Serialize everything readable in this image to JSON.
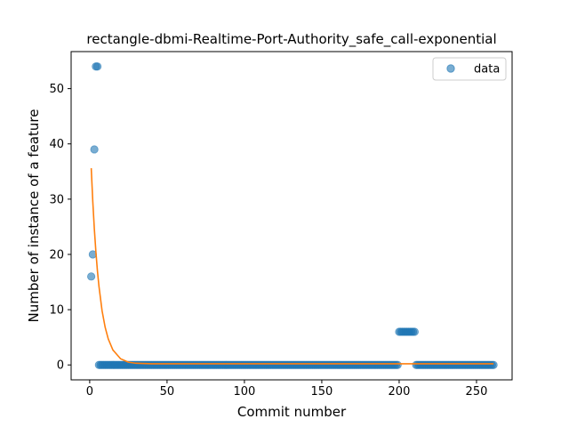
{
  "chart_data": {
    "type": "scatter",
    "title": "rectangle-dbmi-Realtime-Port-Authority_safe_call-exponential",
    "xlabel": "Commit number",
    "ylabel": "Number of instance of a feature",
    "xlim": [
      -12,
      273
    ],
    "ylim": [
      -2.7,
      56.7
    ],
    "xticks": [
      0,
      50,
      100,
      150,
      200,
      250
    ],
    "yticks": [
      0,
      10,
      20,
      30,
      40,
      50
    ],
    "grid": false,
    "legend_position": "top-right",
    "colors": {
      "data": "#1f77b4",
      "fit": "#ff7f0e"
    },
    "series": [
      {
        "name": "data",
        "kind": "scatter",
        "points": [
          [
            1,
            16
          ],
          [
            2,
            20
          ],
          [
            3,
            39
          ],
          [
            4,
            54
          ],
          [
            5,
            54
          ],
          {
            "x_range": [
              6,
              199
            ],
            "y": 0
          },
          {
            "x_range": [
              200,
              210
            ],
            "y": 6
          },
          {
            "x_range": [
              211,
              261
            ],
            "y": 0
          }
        ]
      },
      {
        "kind": "line",
        "model": "exponential",
        "x": [
          1,
          2,
          3,
          4,
          5,
          6,
          8,
          10,
          12,
          15,
          20,
          25,
          30,
          40,
          60,
          100,
          150,
          200,
          261
        ],
        "y": [
          35.6,
          29.6,
          24.6,
          20.5,
          17.0,
          14.2,
          9.8,
          6.8,
          4.7,
          2.7,
          1.1,
          0.5,
          0.3,
          0.2,
          0.2,
          0.2,
          0.2,
          0.2,
          0.2
        ]
      }
    ]
  }
}
